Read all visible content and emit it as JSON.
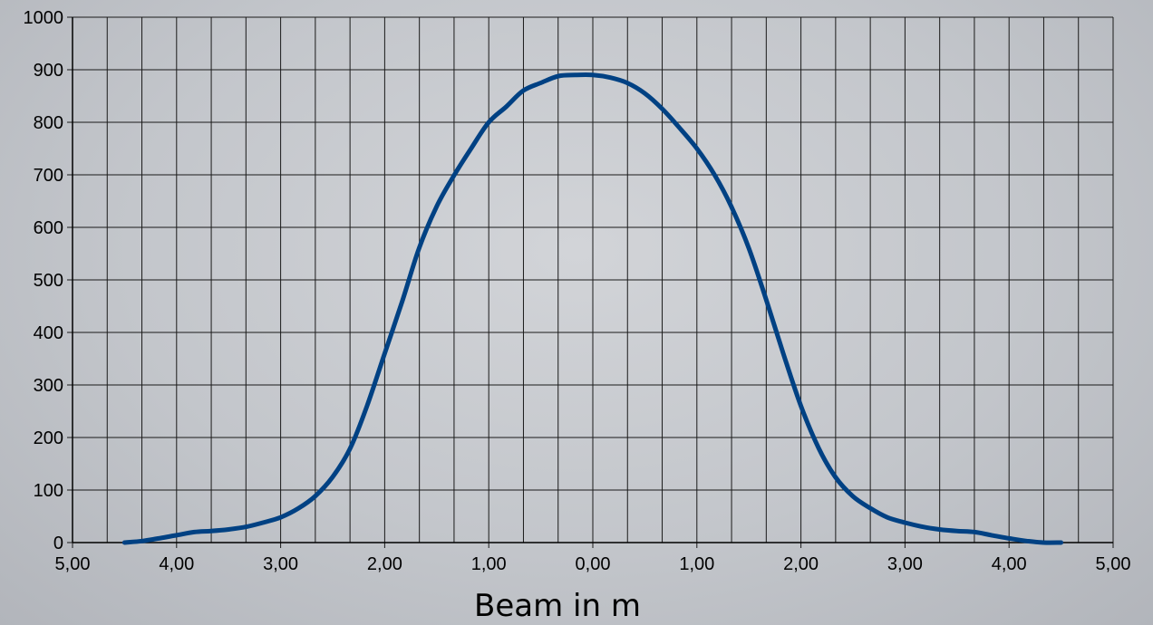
{
  "chart_data": {
    "type": "line",
    "xlabel": "Beam in m",
    "ylabel": "",
    "title": "",
    "xlim": [
      -5,
      5
    ],
    "ylim": [
      0,
      1000
    ],
    "grid": true,
    "x_tick_labels": [
      "5,00",
      "4,00",
      "3,00",
      "2,00",
      "1,00",
      "0,00",
      "1,00",
      "2,00",
      "3,00",
      "4,00",
      "5,00"
    ],
    "y_tick_labels": [
      "0",
      "100",
      "200",
      "300",
      "400",
      "500",
      "600",
      "700",
      "800",
      "900",
      "1000"
    ],
    "series": [
      {
        "color": "#004183",
        "x": [
          -4.5,
          -4.33,
          -4.17,
          -4.0,
          -3.83,
          -3.67,
          -3.5,
          -3.33,
          -3.17,
          -3.0,
          -2.83,
          -2.67,
          -2.5,
          -2.33,
          -2.17,
          -2.0,
          -1.83,
          -1.67,
          -1.5,
          -1.33,
          -1.17,
          -1.0,
          -0.83,
          -0.67,
          -0.5,
          -0.33,
          -0.17,
          0.0,
          0.17,
          0.33,
          0.5,
          0.67,
          0.83,
          1.0,
          1.17,
          1.33,
          1.5,
          1.67,
          1.83,
          2.0,
          2.17,
          2.33,
          2.5,
          2.67,
          2.83,
          3.0,
          3.17,
          3.33,
          3.5,
          3.67,
          3.83,
          4.0,
          4.17,
          4.33,
          4.5
        ],
        "y": [
          0,
          3,
          8,
          14,
          20,
          22,
          25,
          30,
          38,
          48,
          65,
          88,
          125,
          180,
          260,
          360,
          460,
          560,
          640,
          700,
          750,
          800,
          830,
          860,
          875,
          888,
          890,
          890,
          885,
          875,
          855,
          825,
          790,
          750,
          700,
          640,
          560,
          460,
          360,
          260,
          180,
          125,
          88,
          65,
          48,
          38,
          30,
          25,
          22,
          20,
          14,
          8,
          3,
          0,
          0
        ]
      }
    ]
  }
}
